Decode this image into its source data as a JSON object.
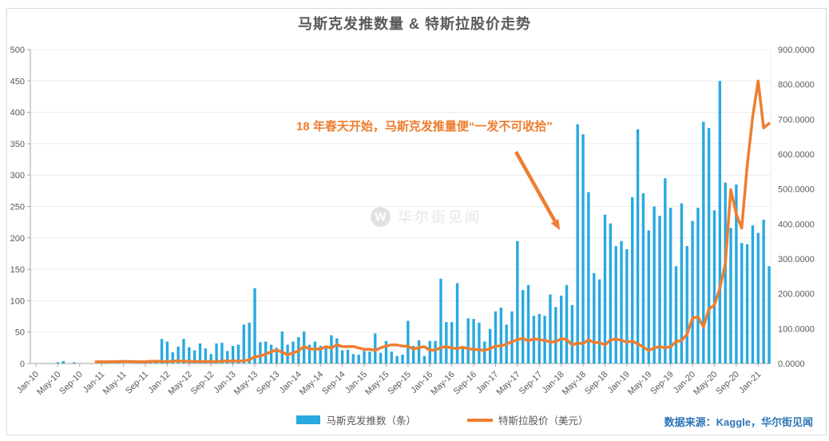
{
  "page": {
    "title": "马斯克发推数量 & 特斯拉股价走势",
    "annotation": "18 年春天开始，马斯克发推量便“一发不可收拾”",
    "watermark_icon": "W",
    "watermark_text": "华尔街见闻",
    "source": "数据来源：Kaggle，华尔街见闻"
  },
  "legend": [
    {
      "label": "马斯克发推数（条）",
      "type": "bar",
      "color": "#29A9E1"
    },
    {
      "label": "特斯拉股价（美元）",
      "type": "line",
      "color": "#EE7E30"
    }
  ],
  "colors": {
    "bar_blue": "#29A9E1",
    "line_orange": "#EE7E30",
    "title_gray": "#595959",
    "axis_text_gray": "#595959",
    "axis_line_gray": "#A6A6A6",
    "grid_gray": "#ECECEC",
    "source_blue": "#2E75B6",
    "figure_border": "#D9D9D9"
  },
  "chart_data": {
    "type": "bar",
    "subtype": "bar+line dual axis, monthly",
    "title": "马斯克发推数量 & 特斯拉股价走势",
    "start_month": "2010-01",
    "end_month": "2021-03",
    "tick_labels": [
      "Jan-10",
      "May-10",
      "Sep-10",
      "Jan-11",
      "May-11",
      "Sep-11",
      "Jan-12",
      "May-12",
      "Sep-12",
      "Jan-13",
      "May-13",
      "Sep-13",
      "Jan-14",
      "May-14",
      "Sep-14",
      "Jan-15",
      "May-15",
      "Sep-15",
      "Jan-16",
      "May-16",
      "Sep-16",
      "Jan-17",
      "May-17",
      "Sep-17",
      "Jan-18",
      "May-18",
      "Sep-18",
      "Jan-19",
      "May-19",
      "Sep-19",
      "Jan-20",
      "May-20",
      "Sep-20",
      "Jan-21"
    ],
    "tick_every_n_months": 4,
    "left_axis": {
      "min": 0,
      "max": 500,
      "step": 50,
      "decimals": 0
    },
    "right_axis": {
      "min": 0,
      "max": 900,
      "step": 100,
      "decimals": 4
    },
    "grid": "horizontal",
    "legend_position": "bottom",
    "series": [
      {
        "name": "马斯克发推数（条）",
        "type": "bar",
        "axis": "left",
        "color": "#29A9E1",
        "values": [
          0,
          0,
          0,
          0,
          2,
          4,
          0,
          2,
          0,
          0,
          0,
          0,
          1,
          0,
          0,
          2,
          0,
          0,
          0,
          1,
          0,
          2,
          3,
          39,
          35,
          18,
          27,
          39,
          26,
          21,
          32,
          24,
          15,
          32,
          33,
          20,
          28,
          30,
          62,
          65,
          120,
          34,
          35,
          30,
          25,
          51,
          30,
          35,
          42,
          51,
          30,
          35,
          28,
          28,
          45,
          40,
          21,
          22,
          15,
          14,
          20,
          19,
          48,
          17,
          36,
          19,
          12,
          14,
          68,
          28,
          37,
          12,
          36,
          36,
          135,
          66,
          66,
          128,
          25,
          72,
          71,
          65,
          35,
          55,
          83,
          89,
          62,
          83,
          195,
          117,
          125,
          76,
          79,
          76,
          110,
          90,
          108,
          125,
          93,
          381,
          365,
          273,
          144,
          134,
          237,
          223,
          187,
          195,
          182,
          265,
          373,
          271,
          212,
          250,
          235,
          295,
          248,
          155,
          255,
          187,
          227,
          248,
          385,
          375,
          244,
          450,
          288,
          216,
          285,
          192,
          190,
          220,
          208,
          229,
          155
        ]
      },
      {
        "name": "特斯拉股价（美元）",
        "type": "line",
        "axis": "right",
        "color": "#EE7E30",
        "values": [
          null,
          null,
          null,
          null,
          null,
          null,
          null,
          null,
          null,
          null,
          null,
          5.3,
          4.8,
          4.8,
          5.6,
          5.5,
          6.0,
          5.8,
          5.6,
          4.9,
          4.9,
          6.3,
          6.6,
          5.7,
          5.8,
          6.7,
          7.4,
          6.6,
          5.9,
          6.3,
          5.5,
          5.7,
          5.9,
          5.6,
          6.8,
          6.8,
          7.5,
          7.0,
          7.6,
          10.8,
          19.5,
          21.5,
          26.9,
          33.8,
          38.7,
          32.2,
          25.4,
          30.1,
          36.3,
          48.9,
          41.6,
          41.5,
          41.5,
          48.0,
          44.7,
          53.9,
          48.6,
          48.3,
          48.9,
          44.5,
          40.7,
          40.7,
          37.7,
          45.2,
          50.1,
          53.6,
          53.2,
          49.9,
          49.7,
          41.4,
          46.1,
          48.0,
          38.2,
          38.4,
          45.9,
          48.2,
          44.7,
          42.5,
          46.9,
          42.4,
          40.8,
          39.5,
          37.8,
          42.7,
          50.4,
          50.0,
          55.7,
          62.8,
          68.3,
          72.3,
          64.6,
          71.1,
          68.2,
          66.3,
          61.6,
          62.3,
          70.9,
          68.6,
          53.2,
          58.7,
          57.0,
          68.5,
          59.7,
          60.3,
          52.9,
          67.5,
          70.1,
          66.6,
          61.4,
          64.0,
          56.0,
          47.7,
          37.0,
          44.7,
          48.3,
          45.1,
          48.2,
          63.0,
          66.0,
          83.7,
          130.1,
          133.6,
          104.8,
          156.4,
          167.0,
          216.0,
          286.2,
          498.3,
          429.0,
          388.0,
          567.6,
          705.7,
          810.0,
          675.5,
          688.0
        ]
      }
    ],
    "annotation": {
      "text": "18 年春天开始，马斯克发推量便“一发不可收拾”",
      "arrow_from_month": "2017-12",
      "arrow_to_month": "2018-03"
    }
  }
}
